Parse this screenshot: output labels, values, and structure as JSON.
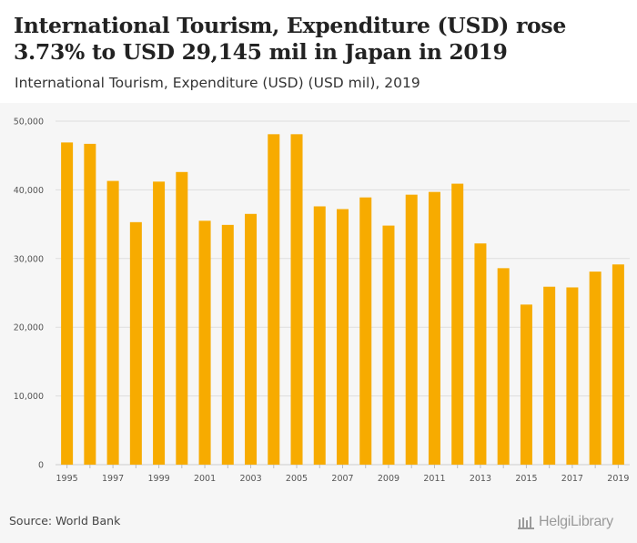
{
  "header": {
    "title": "International Tourism, Expenditure (USD) rose 3.73% to USD 29,145 mil in Japan in 2019",
    "subtitle": "International Tourism, Expenditure (USD) (USD mil), 2019"
  },
  "footer": {
    "source": "Source: World Bank",
    "logo_text": "HelgiLibrary"
  },
  "colors": {
    "bar": "#f7ab00",
    "grid": "#dddddd",
    "plot_bg": "#f6f6f6"
  },
  "chart_data": {
    "type": "bar",
    "title": "International Tourism, Expenditure (USD) rose 3.73% to USD 29,145 mil in Japan in 2019",
    "subtitle": "International Tourism, Expenditure (USD) (USD mil), 2019",
    "xlabel": "",
    "ylabel": "",
    "ylim": [
      0,
      50000
    ],
    "yticks": [
      0,
      10000,
      20000,
      30000,
      40000,
      50000
    ],
    "ytick_labels": [
      "0",
      "10,000",
      "20,000",
      "30,000",
      "40,000",
      "50,000"
    ],
    "categories": [
      "1995",
      "1996",
      "1997",
      "1998",
      "1999",
      "2000",
      "2001",
      "2002",
      "2003",
      "2004",
      "2005",
      "2006",
      "2007",
      "2008",
      "2009",
      "2010",
      "2011",
      "2012",
      "2013",
      "2014",
      "2015",
      "2016",
      "2017",
      "2018",
      "2019"
    ],
    "xtick_labels": [
      "1995",
      "1997",
      "1999",
      "2001",
      "2003",
      "2005",
      "2007",
      "2009",
      "2011",
      "2013",
      "2015",
      "2017",
      "2019"
    ],
    "values": [
      46900,
      46700,
      41300,
      35300,
      41200,
      42600,
      35500,
      34900,
      36500,
      48100,
      48100,
      37600,
      37200,
      38900,
      34800,
      39300,
      39700,
      40900,
      32200,
      28600,
      23300,
      25900,
      25800,
      28100,
      29145
    ],
    "grid": true,
    "legend": "none"
  }
}
